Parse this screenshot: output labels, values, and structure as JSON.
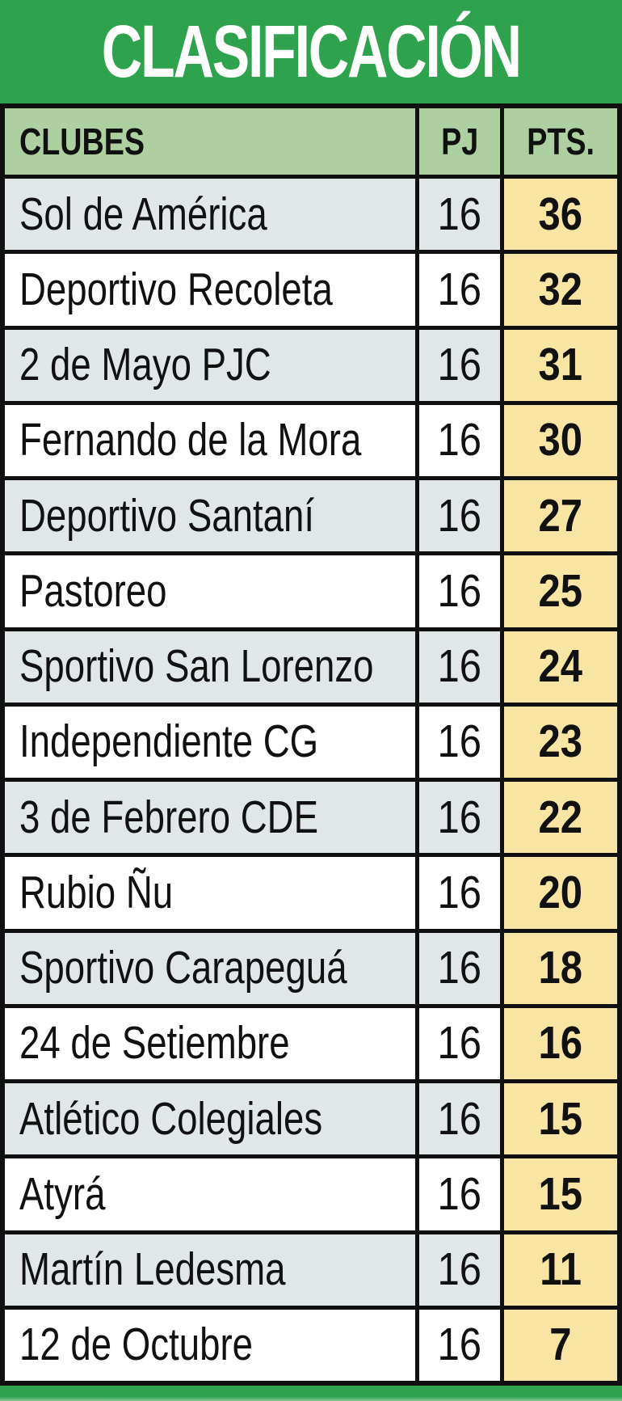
{
  "chart_data": {
    "type": "table",
    "title": "CLASIFICACIÓN",
    "columns": [
      "CLUBES",
      "PJ",
      "PTS."
    ],
    "rows": [
      {
        "club": "Sol de América",
        "pj": "16",
        "pts": "36"
      },
      {
        "club": "Deportivo Recoleta",
        "pj": "16",
        "pts": "32"
      },
      {
        "club": "2 de Mayo PJC",
        "pj": "16",
        "pts": "31"
      },
      {
        "club": "Fernando de la Mora",
        "pj": "16",
        "pts": "30"
      },
      {
        "club": "Deportivo Santaní",
        "pj": "16",
        "pts": "27"
      },
      {
        "club": "Pastoreo",
        "pj": "16",
        "pts": "25"
      },
      {
        "club": "Sportivo San Lorenzo",
        "pj": "16",
        "pts": "24"
      },
      {
        "club": "Independiente CG",
        "pj": "16",
        "pts": "23"
      },
      {
        "club": "3 de Febrero CDE",
        "pj": "16",
        "pts": "22"
      },
      {
        "club": "Rubio Ñu",
        "pj": "16",
        "pts": "20"
      },
      {
        "club": "Sportivo Carapeguá",
        "pj": "16",
        "pts": "18"
      },
      {
        "club": "24 de Setiembre",
        "pj": "16",
        "pts": "16"
      },
      {
        "club": "Atlético Colegiales",
        "pj": "16",
        "pts": "15"
      },
      {
        "club": "Atyrá",
        "pj": "16",
        "pts": "15"
      },
      {
        "club": "Martín Ledesma",
        "pj": "16",
        "pts": "11"
      },
      {
        "club": "12 de Octubre",
        "pj": "16",
        "pts": "7"
      }
    ],
    "layout": {
      "row_striping": "odd rows gray, even rows white",
      "pts_column_highlight": "yellow"
    }
  },
  "colors": {
    "green": "#2ea24d",
    "green_light": "#8cc79a",
    "header_green": "#aecfa0",
    "row_alt": "#e1e6e9",
    "pts_bg": "#f8e5a3",
    "border": "#101010",
    "title_text": "#ffffff",
    "text": "#111111"
  }
}
